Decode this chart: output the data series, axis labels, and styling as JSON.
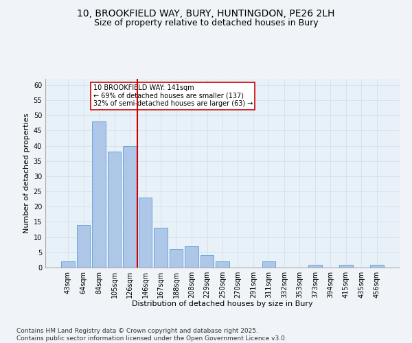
{
  "title1": "10, BROOKFIELD WAY, BURY, HUNTINGDON, PE26 2LH",
  "title2": "Size of property relative to detached houses in Bury",
  "xlabel": "Distribution of detached houses by size in Bury",
  "ylabel": "Number of detached properties",
  "bar_labels": [
    "43sqm",
    "64sqm",
    "84sqm",
    "105sqm",
    "126sqm",
    "146sqm",
    "167sqm",
    "188sqm",
    "208sqm",
    "229sqm",
    "250sqm",
    "270sqm",
    "291sqm",
    "311sqm",
    "332sqm",
    "353sqm",
    "373sqm",
    "394sqm",
    "415sqm",
    "435sqm",
    "456sqm"
  ],
  "bar_values": [
    2,
    14,
    48,
    38,
    40,
    23,
    13,
    6,
    7,
    4,
    2,
    0,
    0,
    2,
    0,
    0,
    1,
    0,
    1,
    0,
    1
  ],
  "bar_color": "#aec6e8",
  "bar_edge_color": "#5a9fd4",
  "vline_color": "#cc0000",
  "annotation_text": "10 BROOKFIELD WAY: 141sqm\n← 69% of detached houses are smaller (137)\n32% of semi-detached houses are larger (63) →",
  "annotation_box_color": "#ffffff",
  "annotation_box_edge": "#cc0000",
  "ylim": [
    0,
    62
  ],
  "yticks": [
    0,
    5,
    10,
    15,
    20,
    25,
    30,
    35,
    40,
    45,
    50,
    55,
    60
  ],
  "grid_color": "#d0dce8",
  "background_color": "#e8f0f8",
  "fig_background": "#f0f4f8",
  "footer_text": "Contains HM Land Registry data © Crown copyright and database right 2025.\nContains public sector information licensed under the Open Government Licence v3.0.",
  "title_fontsize": 10,
  "title2_fontsize": 9,
  "axis_fontsize": 8,
  "tick_fontsize": 7,
  "footer_fontsize": 6.5,
  "annot_fontsize": 7
}
